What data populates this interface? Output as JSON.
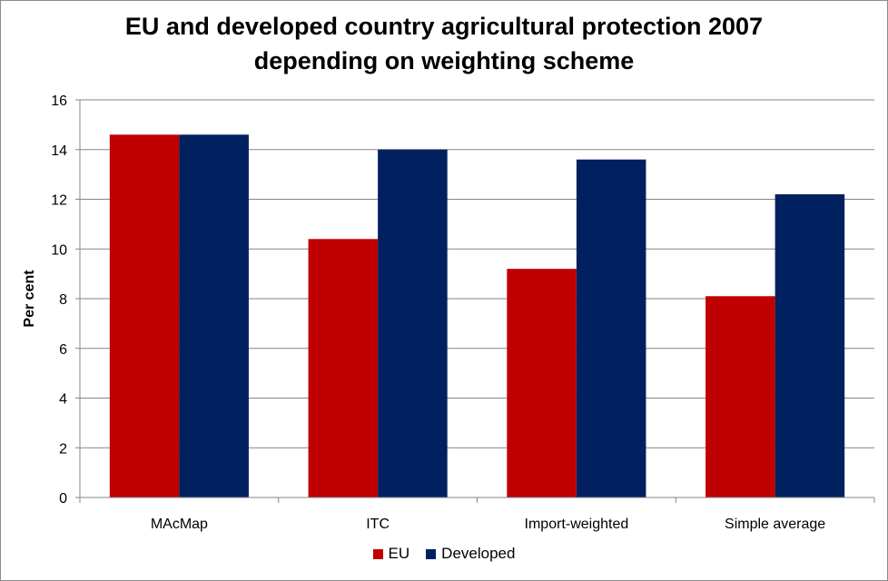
{
  "chart_data": {
    "type": "bar",
    "title": [
      "EU and developed country agricultural protection 2007",
      "depending on weighting scheme"
    ],
    "xlabel": "",
    "ylabel": "Per cent",
    "ylim": [
      0,
      16
    ],
    "yticks": [
      0,
      2,
      4,
      6,
      8,
      10,
      12,
      14,
      16
    ],
    "categories": [
      "MAcMap",
      "ITC",
      "Import-weighted",
      "Simple average"
    ],
    "series": [
      {
        "name": "EU",
        "color": "#c00000",
        "values": [
          14.6,
          10.4,
          9.2,
          8.1
        ]
      },
      {
        "name": "Developed",
        "color": "#002060",
        "values": [
          14.6,
          14.0,
          13.6,
          12.2
        ]
      }
    ],
    "grid": true,
    "legend": "bottom"
  }
}
